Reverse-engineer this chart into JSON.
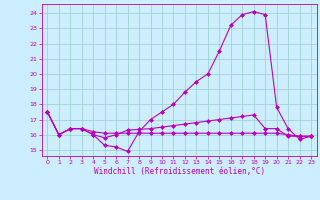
{
  "xlabel": "Windchill (Refroidissement éolien,°C)",
  "bg_color": "#cceeff",
  "line_color": "#bb00bb",
  "grid_color": "#99cccc",
  "xlim": [
    -0.5,
    23.5
  ],
  "ylim": [
    14.6,
    24.6
  ],
  "yticks": [
    15,
    16,
    17,
    18,
    19,
    20,
    21,
    22,
    23,
    24
  ],
  "xticks": [
    0,
    1,
    2,
    3,
    4,
    5,
    6,
    7,
    8,
    9,
    10,
    11,
    12,
    13,
    14,
    15,
    16,
    17,
    18,
    19,
    20,
    21,
    22,
    23
  ],
  "series": [
    [
      17.5,
      16.0,
      16.4,
      16.4,
      16.0,
      15.3,
      15.2,
      14.9,
      16.2,
      17.0,
      17.5,
      18.0,
      18.8,
      19.5,
      20.0,
      21.5,
      23.2,
      23.9,
      24.1,
      23.9,
      17.8,
      16.4,
      15.7,
      15.9
    ],
    [
      17.5,
      16.0,
      16.4,
      16.4,
      16.0,
      15.8,
      16.0,
      16.3,
      16.35,
      16.4,
      16.5,
      16.6,
      16.7,
      16.8,
      16.9,
      17.0,
      17.1,
      17.2,
      17.3,
      16.4,
      16.4,
      15.9,
      15.9,
      15.9
    ],
    [
      17.5,
      16.0,
      16.4,
      16.4,
      16.2,
      16.1,
      16.1,
      16.1,
      16.1,
      16.1,
      16.1,
      16.1,
      16.1,
      16.1,
      16.1,
      16.1,
      16.1,
      16.1,
      16.1,
      16.1,
      16.1,
      16.0,
      15.9,
      15.9
    ]
  ]
}
